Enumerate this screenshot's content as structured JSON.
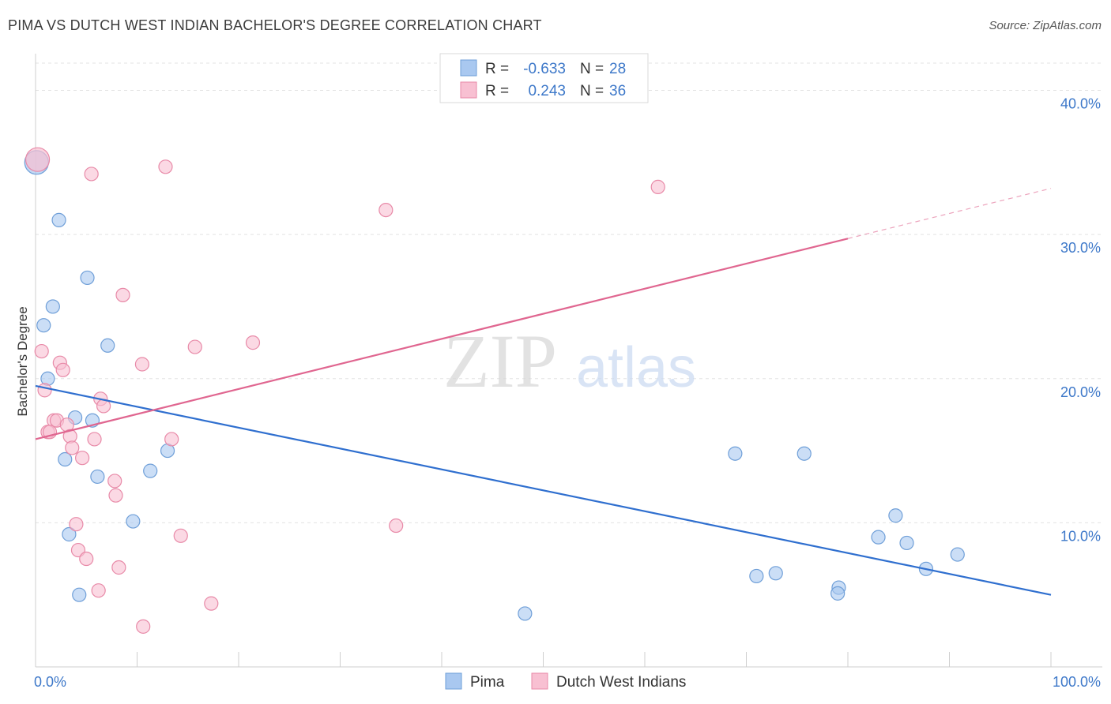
{
  "title": "PIMA VS DUTCH WEST INDIAN BACHELOR'S DEGREE CORRELATION CHART",
  "source": "Source: ZipAtlas.com",
  "watermark": {
    "zip": "ZIP",
    "atlas": "atlas"
  },
  "chart_data": {
    "type": "scatter",
    "title": "PIMA VS DUTCH WEST INDIAN BACHELOR'S DEGREE CORRELATION CHART",
    "ylabel": "Bachelor's Degree",
    "xlabel": "",
    "xlim": [
      0,
      100
    ],
    "ylim": [
      0,
      42
    ],
    "x_tick_labels": [
      "0.0%",
      "100.0%"
    ],
    "y_ticks": [
      10,
      20,
      30,
      40
    ],
    "y_tick_labels": [
      "10.0%",
      "20.0%",
      "30.0%",
      "40.0%"
    ],
    "legend": {
      "rows": [
        {
          "r_label": "R =",
          "r_value": "-0.633",
          "n_label": "N =",
          "n_value": "28"
        },
        {
          "r_label": "R =",
          "r_value": "0.243",
          "n_label": "N =",
          "n_value": "36"
        }
      ]
    },
    "series": [
      {
        "name": "Pima",
        "color": "#a9c8f0",
        "stroke": "#6f9fd8",
        "line_color": "#2f6fcf",
        "trend": {
          "x0": 0.0,
          "y0": 19.5,
          "x1": 100.0,
          "y1": 5.0,
          "solid_until": 100.0
        },
        "points": [
          [
            0.1,
            35.0
          ],
          [
            2.3,
            31.0
          ],
          [
            5.1,
            27.0
          ],
          [
            1.7,
            25.0
          ],
          [
            0.8,
            23.7
          ],
          [
            7.1,
            22.3
          ],
          [
            1.2,
            20.0
          ],
          [
            3.9,
            17.3
          ],
          [
            5.6,
            17.1
          ],
          [
            2.9,
            14.4
          ],
          [
            13.0,
            15.0
          ],
          [
            11.3,
            13.6
          ],
          [
            6.1,
            13.2
          ],
          [
            9.6,
            10.1
          ],
          [
            3.3,
            9.2
          ],
          [
            4.3,
            5.0
          ],
          [
            68.9,
            14.8
          ],
          [
            75.7,
            14.8
          ],
          [
            84.7,
            10.5
          ],
          [
            83.0,
            9.0
          ],
          [
            85.8,
            8.6
          ],
          [
            90.8,
            7.8
          ],
          [
            87.7,
            6.8
          ],
          [
            71.0,
            6.3
          ],
          [
            72.9,
            6.5
          ],
          [
            79.1,
            5.5
          ],
          [
            79.0,
            5.1
          ],
          [
            48.2,
            3.7
          ]
        ]
      },
      {
        "name": "Dutch West Indians",
        "color": "#f8c0d2",
        "stroke": "#e88aa8",
        "line_color": "#e06690",
        "trend": {
          "x0": 0.0,
          "y0": 15.8,
          "x1": 100.0,
          "y1": 33.2,
          "solid_until": 80.0
        },
        "points": [
          [
            0.2,
            35.2
          ],
          [
            12.8,
            34.7
          ],
          [
            5.5,
            34.2
          ],
          [
            61.3,
            33.3
          ],
          [
            34.5,
            31.7
          ],
          [
            8.6,
            25.8
          ],
          [
            21.4,
            22.5
          ],
          [
            0.6,
            21.9
          ],
          [
            15.7,
            22.2
          ],
          [
            10.5,
            21.0
          ],
          [
            2.4,
            21.1
          ],
          [
            2.7,
            20.6
          ],
          [
            0.9,
            19.2
          ],
          [
            6.4,
            18.6
          ],
          [
            6.7,
            18.1
          ],
          [
            1.8,
            17.1
          ],
          [
            2.1,
            17.1
          ],
          [
            3.1,
            16.8
          ],
          [
            1.2,
            16.3
          ],
          [
            1.4,
            16.3
          ],
          [
            3.4,
            16.0
          ],
          [
            5.8,
            15.8
          ],
          [
            13.4,
            15.8
          ],
          [
            3.6,
            15.2
          ],
          [
            4.6,
            14.5
          ],
          [
            7.8,
            12.9
          ],
          [
            7.9,
            11.9
          ],
          [
            4.0,
            9.9
          ],
          [
            35.5,
            9.8
          ],
          [
            14.3,
            9.1
          ],
          [
            4.2,
            8.1
          ],
          [
            5.0,
            7.5
          ],
          [
            8.2,
            6.9
          ],
          [
            6.2,
            5.3
          ],
          [
            17.3,
            4.4
          ],
          [
            10.6,
            2.8
          ]
        ]
      }
    ]
  }
}
